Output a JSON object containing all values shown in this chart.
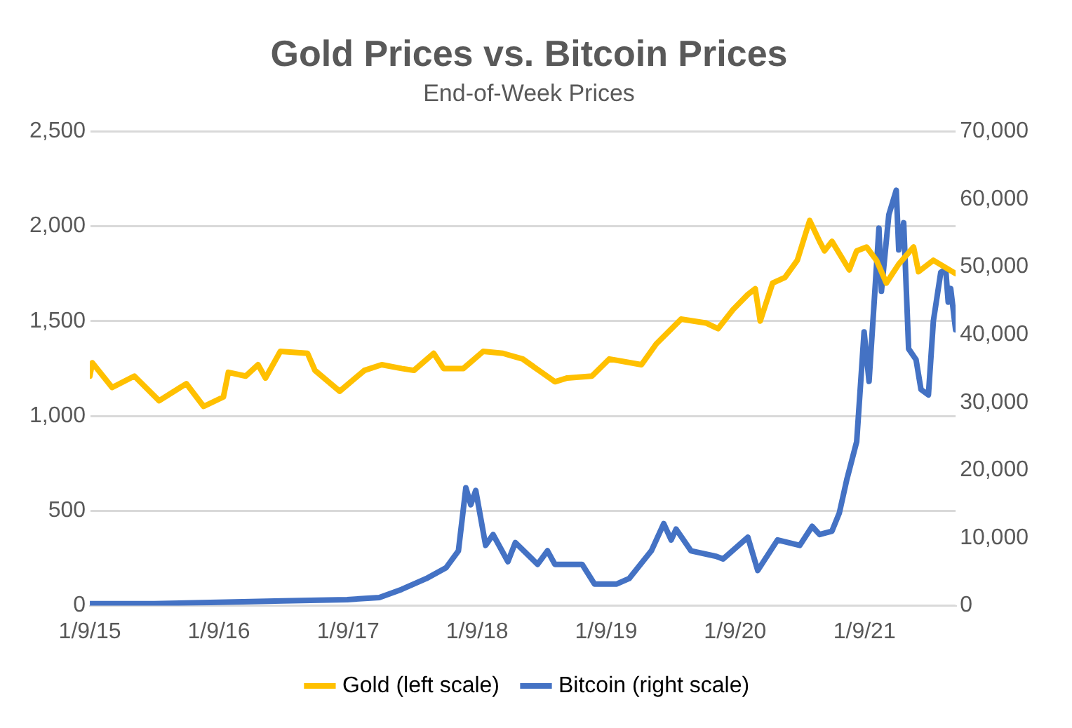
{
  "chart_data": {
    "type": "line",
    "title": "Gold Prices vs. Bitcoin Prices",
    "subtitle": "End-of-Week Prices",
    "xlim": [
      "2015-01-09",
      "2021-09-24"
    ],
    "xticks": [
      {
        "value": "2015-01-09",
        "label": "1/9/15"
      },
      {
        "value": "2016-01-09",
        "label": "1/9/16"
      },
      {
        "value": "2017-01-09",
        "label": "1/9/17"
      },
      {
        "value": "2018-01-09",
        "label": "1/9/18"
      },
      {
        "value": "2019-01-09",
        "label": "1/9/19"
      },
      {
        "value": "2020-01-09",
        "label": "1/9/20"
      },
      {
        "value": "2021-01-09",
        "label": "1/9/21"
      }
    ],
    "ylim": [
      0,
      2500
    ],
    "yticks": [
      0,
      500,
      {
        "value": 1000,
        "label": "1,000"
      },
      {
        "value": 1500,
        "label": "1,500"
      },
      {
        "value": 2000,
        "label": "2,000"
      },
      {
        "value": 2500,
        "label": "2,500"
      }
    ],
    "y2lim": [
      0,
      70000
    ],
    "y2ticks": [
      0,
      {
        "value": 10000,
        "label": "10,000"
      },
      {
        "value": 20000,
        "label": "20,000"
      },
      {
        "value": 30000,
        "label": "30,000"
      },
      {
        "value": 40000,
        "label": "40,000"
      },
      {
        "value": 50000,
        "label": "50,000"
      },
      {
        "value": 60000,
        "label": "60,000"
      },
      {
        "value": 70000,
        "label": "70,000"
      }
    ],
    "grid": "y",
    "legend": "bottom",
    "marker": "none",
    "line_style": "solid",
    "series": [
      {
        "name": "Gold (left scale)",
        "color": "#ffc000",
        "x": [
          "2015-01-09",
          "2015-01-16",
          "2015-03-13",
          "2015-05-15",
          "2015-07-24",
          "2015-10-09",
          "2015-11-27",
          "2016-01-22",
          "2016-02-05",
          "2016-03-25",
          "2016-04-29",
          "2016-05-20",
          "2016-07-01",
          "2016-09-16",
          "2016-10-07",
          "2016-12-16",
          "2017-02-24",
          "2017-04-14",
          "2017-06-09",
          "2017-07-14",
          "2017-09-08",
          "2017-10-06",
          "2017-12-01",
          "2018-01-26",
          "2018-03-23",
          "2018-05-18",
          "2018-08-17",
          "2018-09-21",
          "2018-11-30",
          "2019-01-18",
          "2019-04-19",
          "2019-05-31",
          "2019-08-09",
          "2019-10-18",
          "2019-11-22",
          "2020-01-03",
          "2020-02-14",
          "2020-03-06",
          "2020-03-20",
          "2020-04-24",
          "2020-05-29",
          "2020-07-03",
          "2020-08-07",
          "2020-09-04",
          "2020-09-18",
          "2020-10-09",
          "2020-11-27",
          "2020-12-18",
          "2021-01-15",
          "2021-02-12",
          "2021-03-12",
          "2021-04-16",
          "2021-05-28",
          "2021-06-11",
          "2021-07-23",
          "2021-09-24"
        ],
        "values": [
          1210,
          1280,
          1150,
          1210,
          1080,
          1170,
          1050,
          1100,
          1230,
          1210,
          1270,
          1200,
          1340,
          1330,
          1240,
          1130,
          1240,
          1270,
          1250,
          1240,
          1330,
          1250,
          1250,
          1340,
          1330,
          1300,
          1180,
          1200,
          1210,
          1300,
          1270,
          1380,
          1510,
          1490,
          1460,
          1560,
          1640,
          1670,
          1500,
          1700,
          1730,
          1820,
          2030,
          1920,
          1870,
          1920,
          1770,
          1870,
          1890,
          1820,
          1700,
          1800,
          1890,
          1760,
          1820,
          1750
        ]
      },
      {
        "name": "Bitcoin (right scale)",
        "color": "#4472c4",
        "axis": "y2",
        "x": [
          "2015-01-09",
          "2015-07-10",
          "2016-01-08",
          "2016-07-08",
          "2017-01-06",
          "2017-04-07",
          "2017-06-09",
          "2017-08-18",
          "2017-10-13",
          "2017-11-17",
          "2017-12-08",
          "2017-12-22",
          "2018-01-05",
          "2018-02-02",
          "2018-02-23",
          "2018-04-06",
          "2018-04-27",
          "2018-06-29",
          "2018-07-27",
          "2018-08-17",
          "2018-11-02",
          "2018-12-07",
          "2019-02-08",
          "2019-03-15",
          "2019-05-17",
          "2019-06-21",
          "2019-07-12",
          "2019-07-26",
          "2019-09-06",
          "2019-11-15",
          "2019-12-06",
          "2020-02-14",
          "2020-03-13",
          "2020-05-08",
          "2020-07-10",
          "2020-08-14",
          "2020-09-04",
          "2020-10-09",
          "2020-10-30",
          "2020-11-20",
          "2020-12-18",
          "2021-01-08",
          "2021-01-22",
          "2021-02-19",
          "2021-02-26",
          "2021-03-19",
          "2021-04-09",
          "2021-04-16",
          "2021-04-30",
          "2021-05-14",
          "2021-06-04",
          "2021-06-18",
          "2021-07-09",
          "2021-07-23",
          "2021-08-13",
          "2021-08-27",
          "2021-09-03",
          "2021-09-10",
          "2021-09-24"
        ],
        "values": [
          300,
          300,
          500,
          700,
          900,
          1200,
          2400,
          4000,
          5600,
          8100,
          17400,
          14900,
          17000,
          8900,
          10500,
          6500,
          9300,
          6100,
          8100,
          6100,
          6100,
          3200,
          3200,
          4000,
          8100,
          12100,
          9700,
          11300,
          8100,
          7300,
          6900,
          10100,
          5200,
          9700,
          8900,
          11700,
          10500,
          11000,
          13700,
          18600,
          24200,
          40400,
          33100,
          55700,
          46400,
          57700,
          61300,
          52500,
          56500,
          37900,
          36300,
          31900,
          31100,
          42000,
          49200,
          49600,
          44800,
          46800,
          40700
        ]
      }
    ]
  }
}
